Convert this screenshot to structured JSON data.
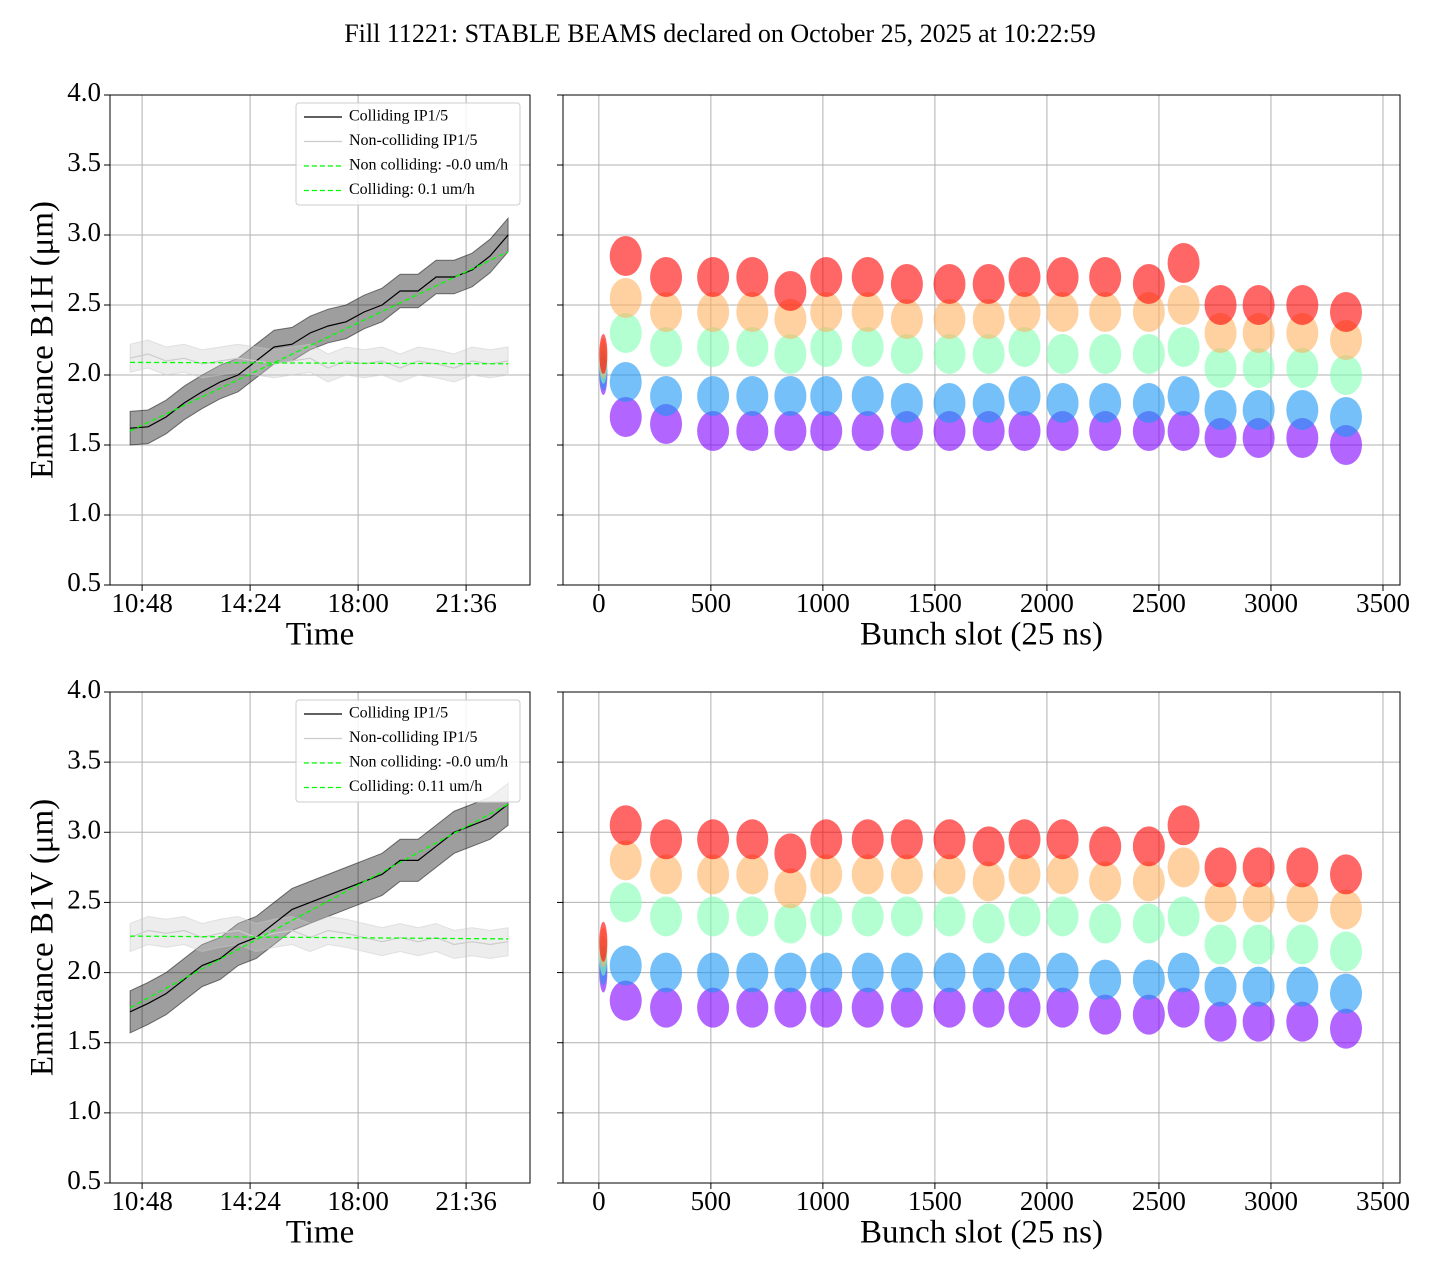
{
  "title": "Fill 11221: STABLE BEAMS declared on October 25, 2025 at 10:22:59",
  "chart_data": [
    {
      "type": "line",
      "xlabel": "Time",
      "ylabel": "Emittance B1H (μm)",
      "grid": true,
      "legend": "upper right",
      "xlim": [
        9.73,
        23.73
      ],
      "xticks": [
        {
          "value": 10.8,
          "label": "10:48"
        },
        {
          "value": 14.4,
          "label": "14:24"
        },
        {
          "value": 18.0,
          "label": "18:00"
        },
        {
          "value": 21.6,
          "label": "21:36"
        }
      ],
      "ylim": [
        0.5,
        4.0
      ],
      "yticks": [
        {
          "value": 0.5,
          "label": "0.5"
        },
        {
          "value": 1.0,
          "label": "1.0"
        },
        {
          "value": 1.5,
          "label": "1.5"
        },
        {
          "value": 2.0,
          "label": "2.0"
        },
        {
          "value": 2.5,
          "label": "2.5"
        },
        {
          "value": 3.0,
          "label": "3.0"
        },
        {
          "value": 3.5,
          "label": "3.5"
        },
        {
          "value": 4.0,
          "label": "4.0"
        }
      ],
      "x": [
        10.4,
        11.0,
        11.6,
        12.2,
        12.8,
        13.4,
        14.0,
        14.6,
        15.2,
        15.8,
        16.4,
        17.0,
        17.6,
        18.2,
        18.8,
        19.4,
        20.0,
        20.6,
        21.2,
        21.8,
        22.4,
        23.0
      ],
      "series": [
        {
          "name": "Colliding IP1/5",
          "color": "#000000",
          "values": [
            1.62,
            1.63,
            1.7,
            1.8,
            1.88,
            1.95,
            2.0,
            2.1,
            2.2,
            2.22,
            2.3,
            2.35,
            2.38,
            2.45,
            2.5,
            2.6,
            2.6,
            2.7,
            2.7,
            2.75,
            2.85,
            3.0
          ],
          "lower": [
            1.5,
            1.51,
            1.58,
            1.68,
            1.76,
            1.83,
            1.88,
            1.98,
            2.08,
            2.1,
            2.18,
            2.23,
            2.26,
            2.33,
            2.38,
            2.48,
            2.48,
            2.58,
            2.58,
            2.63,
            2.73,
            2.88
          ],
          "upper": [
            1.74,
            1.75,
            1.82,
            1.92,
            2.0,
            2.07,
            2.12,
            2.22,
            2.32,
            2.34,
            2.42,
            2.47,
            2.5,
            2.57,
            2.62,
            2.72,
            2.72,
            2.82,
            2.82,
            2.87,
            2.97,
            3.12
          ]
        },
        {
          "name": "Non-colliding IP1/5",
          "color": "#cccccc",
          "values": [
            2.12,
            2.15,
            2.1,
            2.12,
            2.08,
            2.1,
            2.12,
            2.1,
            2.08,
            2.1,
            2.12,
            2.05,
            2.1,
            2.08,
            2.1,
            2.05,
            2.1,
            2.08,
            2.05,
            2.1,
            2.08,
            2.1
          ],
          "lower": [
            2.02,
            2.05,
            2.0,
            2.02,
            1.98,
            2.0,
            2.02,
            2.0,
            1.98,
            2.0,
            2.02,
            1.95,
            2.0,
            1.98,
            2.0,
            1.95,
            2.0,
            1.98,
            1.95,
            2.0,
            1.98,
            2.0
          ],
          "upper": [
            2.22,
            2.25,
            2.2,
            2.22,
            2.18,
            2.2,
            2.22,
            2.2,
            2.18,
            2.2,
            2.22,
            2.15,
            2.2,
            2.18,
            2.2,
            2.15,
            2.2,
            2.18,
            2.15,
            2.2,
            2.18,
            2.2
          ]
        },
        {
          "name": "Non colliding: -0.0 um/h",
          "color": "#00ff00",
          "dashed": true,
          "x": [
            10.4,
            23.0
          ],
          "values": [
            2.09,
            2.08
          ]
        },
        {
          "name": "Colliding: 0.1 um/h",
          "color": "#00ff00",
          "dashed": true,
          "x": [
            10.4,
            23.0
          ],
          "values": [
            1.6,
            2.88
          ]
        }
      ]
    },
    {
      "type": "scatter",
      "xlabel": "Bunch slot (25 ns)",
      "grid": true,
      "show_yticklabels": false,
      "xlim": [
        -160,
        3576
      ],
      "xticks": [
        0,
        500,
        1000,
        1500,
        2000,
        2500,
        3000,
        3500
      ],
      "ylim": [
        0.5,
        4.0
      ],
      "yticks": [
        0.5,
        1.0,
        1.5,
        2.0,
        2.5,
        3.0,
        3.5,
        4.0
      ],
      "x": [
        20,
        120,
        300,
        510,
        685,
        855,
        1015,
        1200,
        1375,
        1565,
        1740,
        1900,
        2070,
        2260,
        2455,
        2610,
        2775,
        2945,
        3140,
        3335
      ],
      "series": [
        {
          "color": "#8000ff",
          "values": [
            2.0,
            1.7,
            1.65,
            1.6,
            1.6,
            1.6,
            1.6,
            1.6,
            1.6,
            1.6,
            1.6,
            1.6,
            1.6,
            1.6,
            1.6,
            1.6,
            1.55,
            1.55,
            1.55,
            1.5
          ]
        },
        {
          "color": "#1996f3",
          "values": [
            2.03,
            1.95,
            1.85,
            1.85,
            1.85,
            1.85,
            1.85,
            1.85,
            1.8,
            1.8,
            1.8,
            1.85,
            1.8,
            1.8,
            1.8,
            1.85,
            1.75,
            1.75,
            1.75,
            1.7
          ]
        },
        {
          "color": "#80ffb4",
          "values": [
            2.08,
            2.3,
            2.2,
            2.2,
            2.2,
            2.15,
            2.2,
            2.2,
            2.15,
            2.15,
            2.15,
            2.2,
            2.15,
            2.15,
            2.15,
            2.2,
            2.05,
            2.05,
            2.05,
            2.0
          ]
        },
        {
          "color": "#ffb360",
          "values": [
            2.12,
            2.55,
            2.45,
            2.45,
            2.45,
            2.4,
            2.45,
            2.45,
            2.4,
            2.4,
            2.4,
            2.45,
            2.45,
            2.45,
            2.45,
            2.5,
            2.3,
            2.3,
            2.3,
            2.25
          ]
        },
        {
          "color": "#ff0000",
          "values": [
            2.15,
            2.85,
            2.7,
            2.7,
            2.7,
            2.6,
            2.7,
            2.7,
            2.65,
            2.65,
            2.65,
            2.7,
            2.7,
            2.7,
            2.65,
            2.8,
            2.5,
            2.5,
            2.5,
            2.45
          ]
        }
      ]
    },
    {
      "type": "line",
      "xlabel": "Time",
      "ylabel": "Emittance B1V (μm)",
      "grid": true,
      "legend": "upper right",
      "xlim": [
        9.73,
        23.73
      ],
      "xticks": [
        {
          "value": 10.8,
          "label": "10:48"
        },
        {
          "value": 14.4,
          "label": "14:24"
        },
        {
          "value": 18.0,
          "label": "18:00"
        },
        {
          "value": 21.6,
          "label": "21:36"
        }
      ],
      "ylim": [
        0.5,
        4.0
      ],
      "yticks": [
        {
          "value": 0.5,
          "label": "0.5"
        },
        {
          "value": 1.0,
          "label": "1.0"
        },
        {
          "value": 1.5,
          "label": "1.5"
        },
        {
          "value": 2.0,
          "label": "2.0"
        },
        {
          "value": 2.5,
          "label": "2.5"
        },
        {
          "value": 3.0,
          "label": "3.0"
        },
        {
          "value": 3.5,
          "label": "3.5"
        },
        {
          "value": 4.0,
          "label": "4.0"
        }
      ],
      "x": [
        10.4,
        11.0,
        11.6,
        12.2,
        12.8,
        13.4,
        14.0,
        14.6,
        15.2,
        15.8,
        16.4,
        17.0,
        17.6,
        18.2,
        18.8,
        19.4,
        20.0,
        20.6,
        21.2,
        21.8,
        22.4,
        23.0
      ],
      "series": [
        {
          "name": "Colliding IP1/5",
          "color": "#000000",
          "values": [
            1.72,
            1.78,
            1.85,
            1.95,
            2.05,
            2.1,
            2.2,
            2.25,
            2.35,
            2.45,
            2.5,
            2.55,
            2.6,
            2.65,
            2.7,
            2.8,
            2.8,
            2.9,
            3.0,
            3.05,
            3.1,
            3.2
          ],
          "lower": [
            1.57,
            1.63,
            1.7,
            1.8,
            1.9,
            1.95,
            2.05,
            2.1,
            2.2,
            2.3,
            2.35,
            2.4,
            2.45,
            2.5,
            2.55,
            2.65,
            2.65,
            2.75,
            2.85,
            2.9,
            2.95,
            3.05
          ],
          "upper": [
            1.87,
            1.93,
            2.0,
            2.1,
            2.2,
            2.25,
            2.35,
            2.4,
            2.5,
            2.6,
            2.65,
            2.7,
            2.75,
            2.8,
            2.85,
            2.95,
            2.95,
            3.05,
            3.15,
            3.2,
            3.25,
            3.35
          ]
        },
        {
          "name": "Non-colliding IP1/5",
          "color": "#cccccc",
          "values": [
            2.25,
            2.3,
            2.28,
            2.3,
            2.25,
            2.28,
            2.3,
            2.25,
            2.28,
            2.3,
            2.25,
            2.3,
            2.28,
            2.25,
            2.22,
            2.25,
            2.22,
            2.25,
            2.2,
            2.22,
            2.2,
            2.22
          ],
          "lower": [
            2.15,
            2.2,
            2.18,
            2.2,
            2.15,
            2.18,
            2.2,
            2.15,
            2.18,
            2.2,
            2.15,
            2.2,
            2.18,
            2.15,
            2.12,
            2.15,
            2.12,
            2.15,
            2.1,
            2.12,
            2.1,
            2.12
          ],
          "upper": [
            2.35,
            2.4,
            2.38,
            2.4,
            2.35,
            2.38,
            2.4,
            2.35,
            2.38,
            2.4,
            2.35,
            2.4,
            2.38,
            2.35,
            2.32,
            2.35,
            2.32,
            2.35,
            2.3,
            2.32,
            2.3,
            2.32
          ]
        },
        {
          "name": "Non colliding: -0.0 um/h",
          "color": "#00ff00",
          "dashed": true,
          "x": [
            10.4,
            23.0
          ],
          "values": [
            2.26,
            2.24
          ]
        },
        {
          "name": "Colliding: 0.11 um/h",
          "color": "#00ff00",
          "dashed": true,
          "x": [
            10.4,
            23.0
          ],
          "values": [
            1.75,
            3.2
          ]
        }
      ]
    },
    {
      "type": "scatter",
      "xlabel": "Bunch slot (25 ns)",
      "grid": true,
      "show_yticklabels": false,
      "xlim": [
        -160,
        3576
      ],
      "xticks": [
        0,
        500,
        1000,
        1500,
        2000,
        2500,
        3000,
        3500
      ],
      "ylim": [
        0.5,
        4.0
      ],
      "yticks": [
        0.5,
        1.0,
        1.5,
        2.0,
        2.5,
        3.0,
        3.5,
        4.0
      ],
      "x": [
        20,
        120,
        300,
        510,
        685,
        855,
        1015,
        1200,
        1375,
        1565,
        1740,
        1900,
        2070,
        2260,
        2455,
        2610,
        2775,
        2945,
        3140,
        3335
      ],
      "series": [
        {
          "color": "#8000ff",
          "values": [
            2.0,
            1.8,
            1.75,
            1.75,
            1.75,
            1.75,
            1.75,
            1.75,
            1.75,
            1.75,
            1.75,
            1.75,
            1.75,
            1.7,
            1.7,
            1.75,
            1.65,
            1.65,
            1.65,
            1.6
          ]
        },
        {
          "color": "#1996f3",
          "values": [
            2.05,
            2.05,
            2.0,
            2.0,
            2.0,
            2.0,
            2.0,
            2.0,
            2.0,
            2.0,
            2.0,
            2.0,
            2.0,
            1.95,
            1.95,
            2.0,
            1.9,
            1.9,
            1.9,
            1.85
          ]
        },
        {
          "color": "#80ffb4",
          "values": [
            2.12,
            2.5,
            2.4,
            2.4,
            2.4,
            2.35,
            2.4,
            2.4,
            2.4,
            2.4,
            2.35,
            2.4,
            2.4,
            2.35,
            2.35,
            2.4,
            2.2,
            2.2,
            2.2,
            2.15
          ]
        },
        {
          "color": "#ffb360",
          "values": [
            2.18,
            2.8,
            2.7,
            2.7,
            2.7,
            2.6,
            2.7,
            2.7,
            2.7,
            2.7,
            2.65,
            2.7,
            2.7,
            2.65,
            2.65,
            2.75,
            2.5,
            2.5,
            2.5,
            2.45
          ]
        },
        {
          "color": "#ff0000",
          "values": [
            2.22,
            3.05,
            2.95,
            2.95,
            2.95,
            2.85,
            2.95,
            2.95,
            2.95,
            2.95,
            2.9,
            2.95,
            2.95,
            2.9,
            2.9,
            3.05,
            2.75,
            2.75,
            2.75,
            2.7
          ]
        }
      ]
    }
  ]
}
